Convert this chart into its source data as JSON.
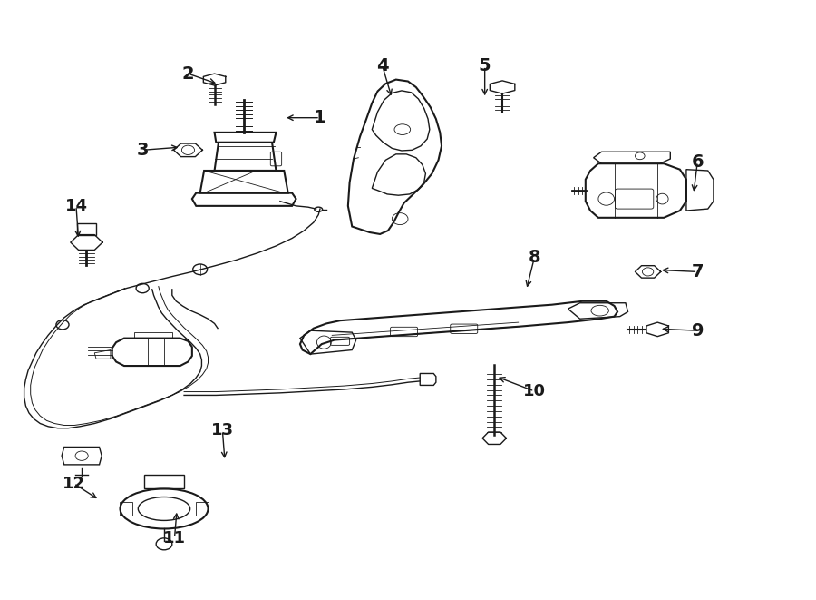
{
  "bg_color": "#ffffff",
  "line_color": "#1a1a1a",
  "fig_width": 9.0,
  "fig_height": 6.61,
  "dpi": 100,
  "label_positions": {
    "1": [
      0.39,
      0.81,
      -0.045,
      0.0
    ],
    "2": [
      0.225,
      0.885,
      0.038,
      -0.018
    ],
    "3": [
      0.168,
      0.755,
      0.048,
      0.005
    ],
    "4": [
      0.468,
      0.898,
      0.012,
      -0.055
    ],
    "5": [
      0.596,
      0.898,
      0.0,
      -0.055
    ],
    "6": [
      0.862,
      0.735,
      -0.005,
      -0.055
    ],
    "7": [
      0.862,
      0.548,
      -0.048,
      0.003
    ],
    "8": [
      0.658,
      0.572,
      -0.01,
      -0.055
    ],
    "9": [
      0.862,
      0.448,
      -0.048,
      0.003
    ],
    "10": [
      0.658,
      0.345,
      -0.048,
      0.025
    ],
    "11": [
      0.208,
      0.095,
      0.003,
      0.048
    ],
    "12": [
      0.082,
      0.188,
      0.032,
      -0.028
    ],
    "13": [
      0.268,
      0.278,
      0.003,
      -0.052
    ],
    "14": [
      0.085,
      0.66,
      0.003,
      -0.058
    ]
  }
}
